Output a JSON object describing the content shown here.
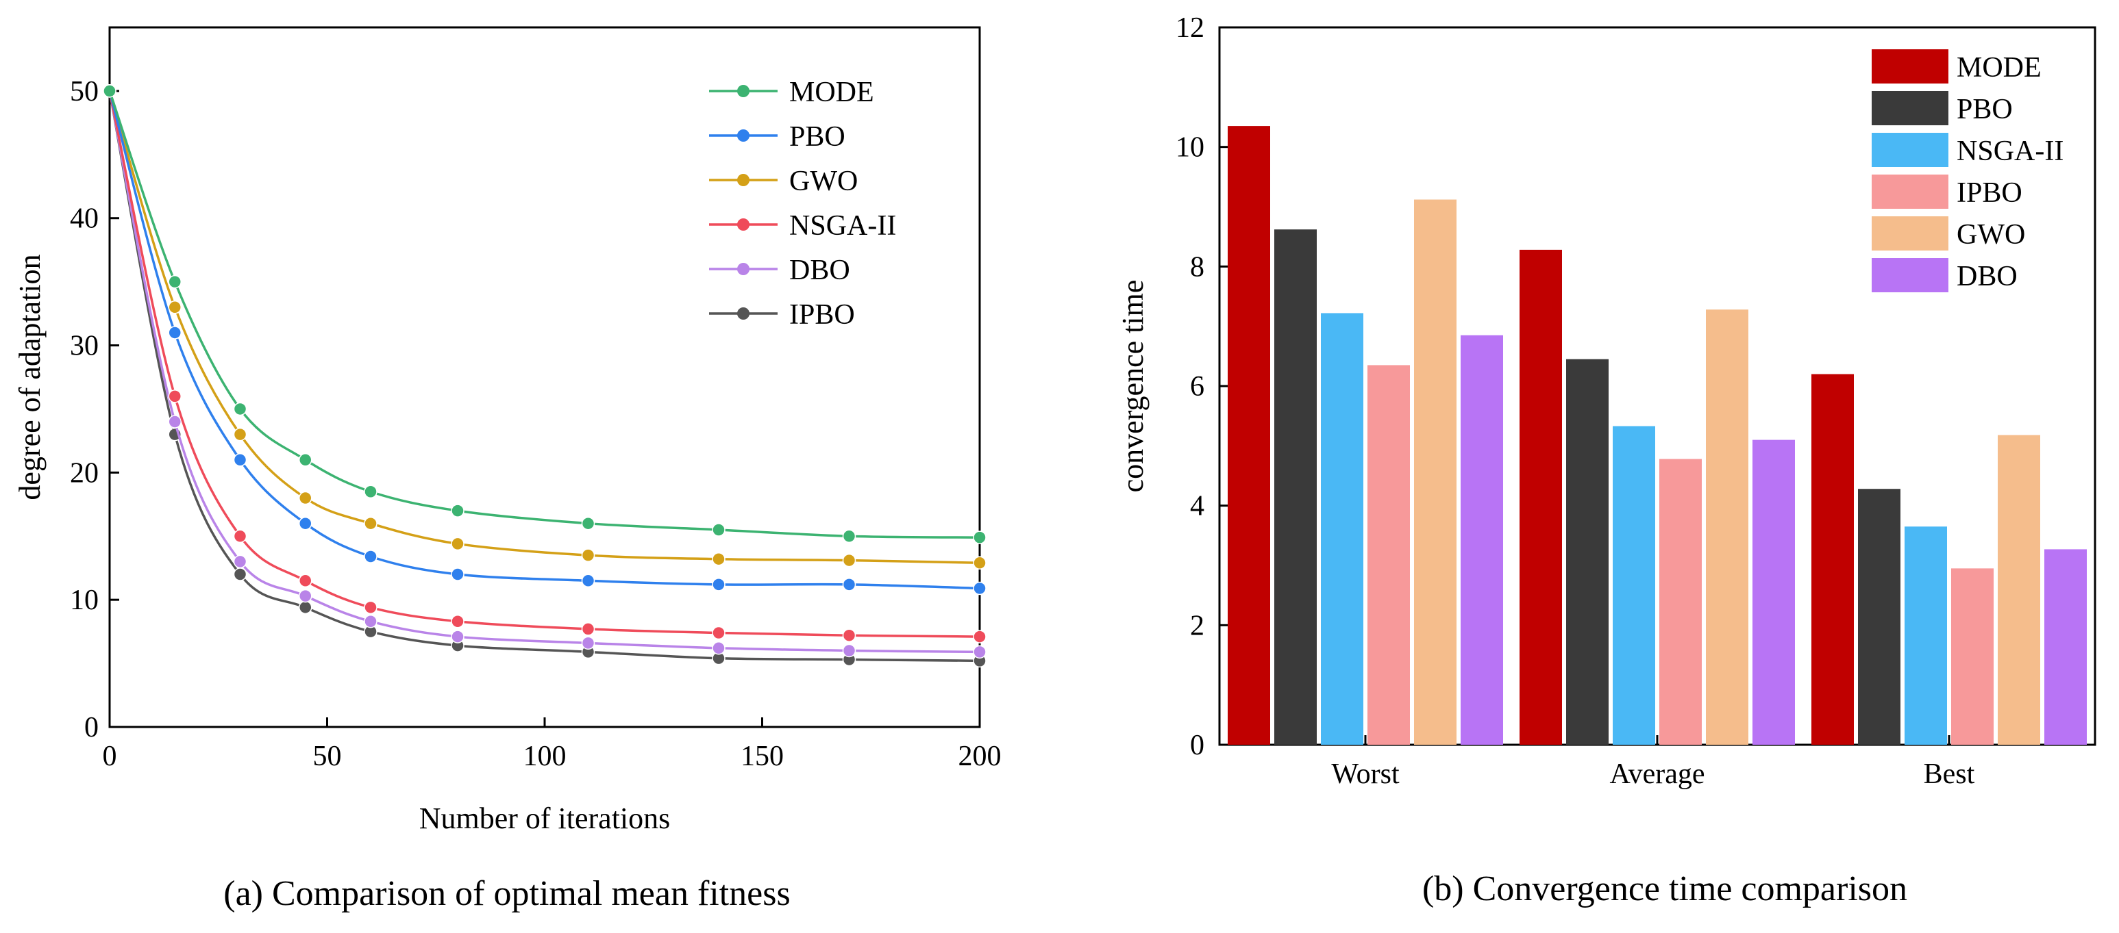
{
  "chart_data": [
    {
      "type": "line",
      "caption": "(a) Comparison of optimal mean fitness",
      "xlabel": "Number of iterations",
      "ylabel": "degree of adaptation",
      "xlim": [
        0,
        200
      ],
      "ylim": [
        0,
        55
      ],
      "xticks": [
        0,
        50,
        100,
        150,
        200
      ],
      "yticks": [
        0,
        10,
        20,
        30,
        40,
        50
      ],
      "x": [
        0,
        15,
        30,
        45,
        60,
        80,
        110,
        140,
        170,
        200
      ],
      "legend_position": "top-right",
      "series": [
        {
          "name": "MODE",
          "color": "#3cb371",
          "values": [
            50,
            35,
            25,
            21,
            18.5,
            17,
            16,
            15.5,
            15,
            14.9
          ]
        },
        {
          "name": "PBO",
          "color": "#2f80ed",
          "values": [
            50,
            31,
            21,
            16,
            13.4,
            12,
            11.5,
            11.2,
            11.2,
            10.9
          ]
        },
        {
          "name": "GWO",
          "color": "#d4a017",
          "values": [
            50,
            33,
            23,
            18,
            16,
            14.4,
            13.5,
            13.2,
            13.1,
            12.9
          ]
        },
        {
          "name": "NSGA-II",
          "color": "#ef4b5a",
          "values": [
            50,
            26,
            15,
            11.5,
            9.4,
            8.3,
            7.7,
            7.4,
            7.2,
            7.1
          ]
        },
        {
          "name": "DBO",
          "color": "#b984e8",
          "values": [
            50,
            24,
            13,
            10.3,
            8.3,
            7.1,
            6.6,
            6.2,
            6.0,
            5.9
          ]
        },
        {
          "name": "IPBO",
          "color": "#555555",
          "values": [
            50,
            23,
            12,
            9.4,
            7.5,
            6.4,
            5.9,
            5.4,
            5.3,
            5.2
          ]
        }
      ]
    },
    {
      "type": "bar",
      "caption": "(b) Convergence time comparison",
      "xlabel": "",
      "ylabel": "convergence time",
      "ylim": [
        0,
        12
      ],
      "yticks": [
        0,
        2,
        4,
        6,
        8,
        10,
        12
      ],
      "categories": [
        "Worst",
        "Average",
        "Best"
      ],
      "legend_position": "top-right",
      "series": [
        {
          "name": "MODE",
          "color": "#c00000",
          "values": [
            10.35,
            8.28,
            6.2
          ]
        },
        {
          "name": "PBO",
          "color": "#3a3a3a",
          "values": [
            8.62,
            6.45,
            4.28
          ]
        },
        {
          "name": "NSGA-II",
          "color": "#4ab8f5",
          "values": [
            7.22,
            5.33,
            3.65
          ]
        },
        {
          "name": "IPBO",
          "color": "#f7999a",
          "values": [
            6.35,
            4.78,
            2.95
          ]
        },
        {
          "name": "GWO",
          "color": "#f5bd8c",
          "values": [
            9.12,
            7.28,
            5.18
          ]
        },
        {
          "name": "DBO",
          "color": "#b874f5",
          "values": [
            6.85,
            5.1,
            3.27
          ]
        }
      ]
    }
  ]
}
